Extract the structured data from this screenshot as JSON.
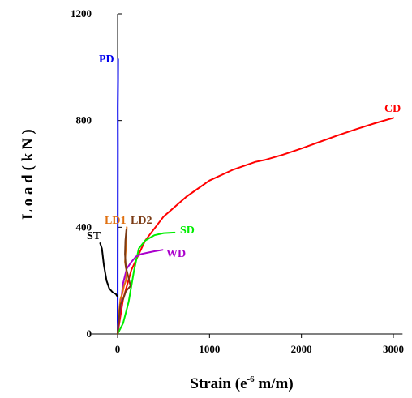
{
  "chart_data": {
    "type": "line",
    "xlabel_main": "Strain (e",
    "xlabel_sup": "-6",
    "xlabel_tail": " m/m)",
    "ylabel": "L o a d ( k N )",
    "xlim": [
      -300,
      3100
    ],
    "ylim": [
      0,
      1200
    ],
    "x_ticks": [
      0,
      1000,
      2000,
      3000
    ],
    "y_ticks": [
      0,
      400,
      800,
      1200
    ],
    "grid": false,
    "series": [
      {
        "name": "CD",
        "color": "#ff0000",
        "x": [
          0,
          60,
          150,
          300,
          500,
          750,
          1000,
          1250,
          1500,
          1600,
          1800,
          2000,
          2200,
          2400,
          2600,
          2800,
          3000
        ],
        "y": [
          0,
          130,
          240,
          350,
          440,
          515,
          575,
          615,
          645,
          652,
          672,
          695,
          720,
          745,
          768,
          790,
          810
        ]
      },
      {
        "name": "PD",
        "color": "#0000ee",
        "x": [
          0,
          1,
          2,
          3,
          2,
          4,
          5
        ],
        "y": [
          0,
          200,
          450,
          700,
          850,
          950,
          1030
        ]
      },
      {
        "name": "SD",
        "color": "#00ee00",
        "x": [
          0,
          60,
          120,
          180,
          230,
          300,
          400,
          500,
          620
        ],
        "y": [
          0,
          40,
          120,
          240,
          320,
          350,
          370,
          378,
          380
        ]
      },
      {
        "name": "WD",
        "color": "#aa00cc",
        "x": [
          0,
          30,
          60,
          100,
          150,
          200,
          260,
          330,
          400,
          490
        ],
        "y": [
          0,
          100,
          190,
          245,
          270,
          290,
          300,
          305,
          310,
          315
        ]
      },
      {
        "name": "ST",
        "color": "#000000",
        "x": [
          -190,
          -170,
          -150,
          -120,
          -90,
          -50,
          -20,
          0
        ],
        "y": [
          340,
          320,
          260,
          200,
          170,
          155,
          150,
          140
        ]
      },
      {
        "name": "LD1",
        "color": "#e07010",
        "x": [
          0,
          15,
          30,
          50,
          70,
          90,
          100,
          80,
          90,
          100
        ],
        "y": [
          0,
          80,
          130,
          150,
          180,
          200,
          230,
          270,
          320,
          400
        ]
      },
      {
        "name": "LD2",
        "color": "#7a3a14",
        "x": [
          0,
          30,
          60,
          90,
          140,
          120,
          90,
          80,
          85,
          95
        ],
        "y": [
          0,
          110,
          130,
          160,
          180,
          210,
          250,
          300,
          350,
          390
        ]
      }
    ]
  }
}
